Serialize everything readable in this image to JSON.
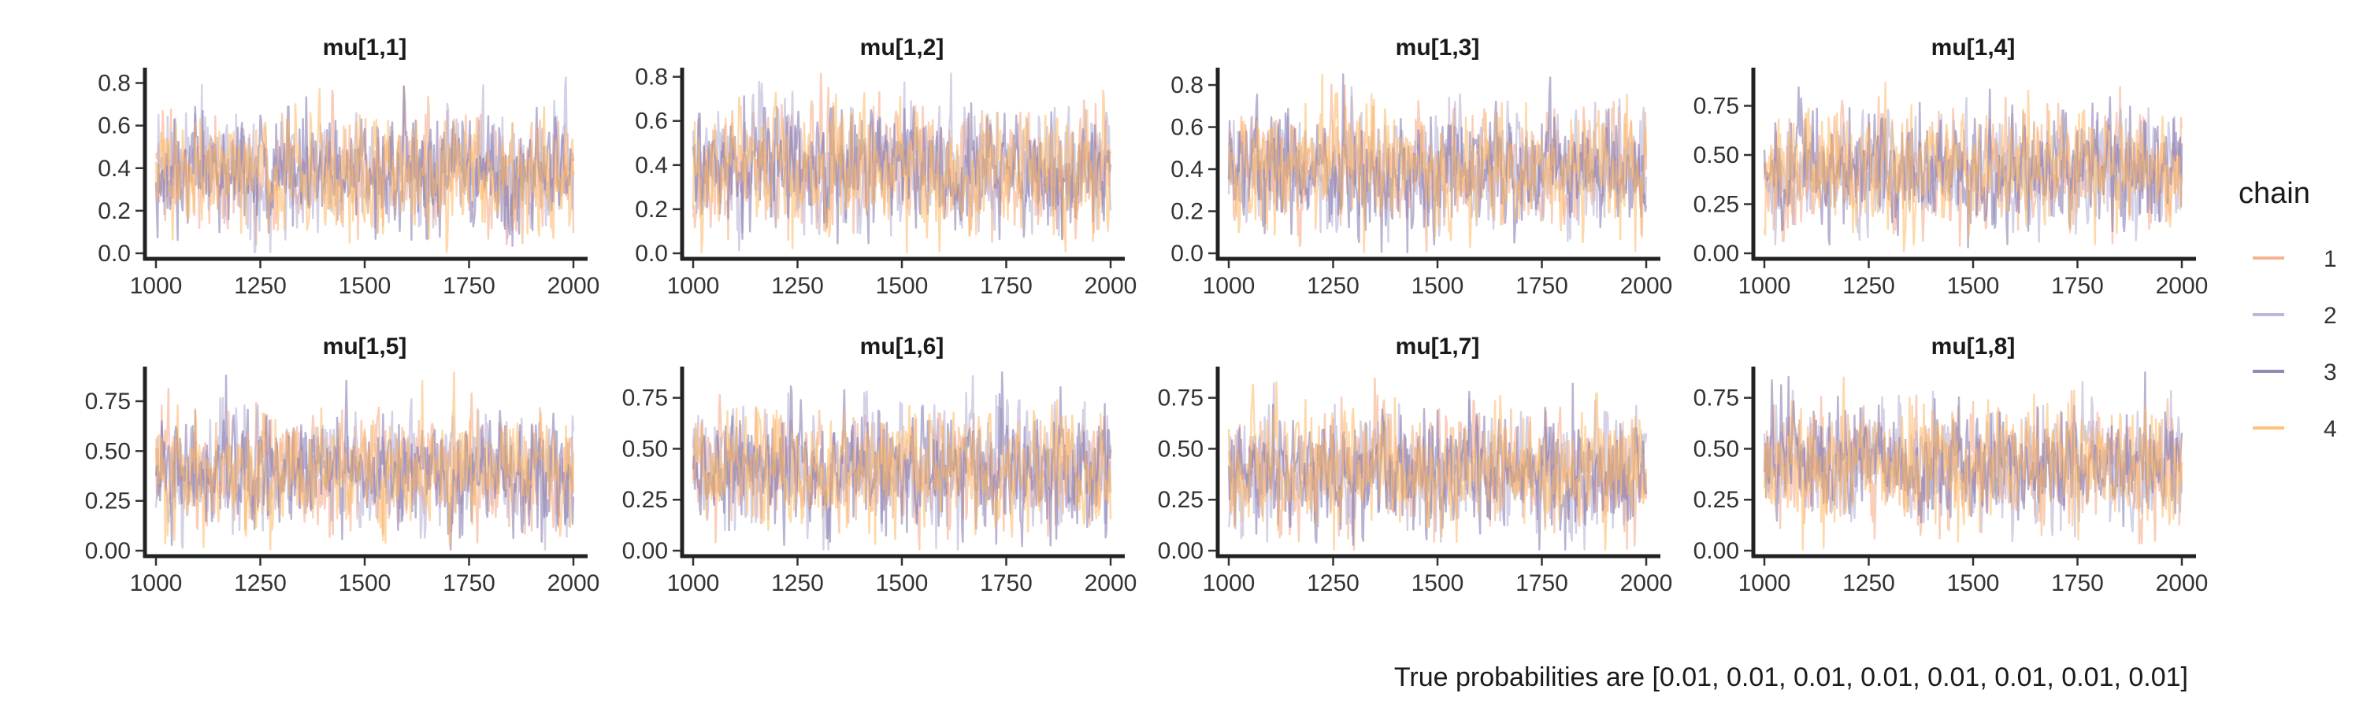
{
  "chart_data": {
    "type": "line",
    "legend": {
      "title": "chain",
      "placement": "right",
      "entries": [
        {
          "label": "1",
          "color": "#f4a582"
        },
        {
          "label": "2",
          "color": "#b2abd2"
        },
        {
          "label": "3",
          "color": "#8073ac"
        },
        {
          "label": "4",
          "color": "#fdb863"
        }
      ]
    },
    "caption": "True probabilities are [0.01, 0.01, 0.01, 0.01, 0.01, 0.01, 0.01, 0.01]",
    "x_range": [
      1000,
      2000
    ],
    "x_ticks": [
      1000,
      1250,
      1500,
      1750,
      2000
    ],
    "grid": false,
    "series_opacity": 0.55,
    "panels": [
      {
        "title": "mu[1,1]",
        "ylim": [
          0.0,
          0.85
        ],
        "y_ticks": [
          0.0,
          0.2,
          0.4,
          0.6,
          0.8
        ],
        "y_tick_labels": [
          "0.0",
          "0.2",
          "0.4",
          "0.6",
          "0.8"
        ],
        "center": 0.38,
        "spread": 0.13
      },
      {
        "title": "mu[1,2]",
        "ylim": [
          0.0,
          0.82
        ],
        "y_ticks": [
          0.0,
          0.2,
          0.4,
          0.6,
          0.8
        ],
        "y_tick_labels": [
          "0.0",
          "0.2",
          "0.4",
          "0.6",
          "0.8"
        ],
        "center": 0.38,
        "spread": 0.13
      },
      {
        "title": "mu[1,3]",
        "ylim": [
          0.0,
          0.86
        ],
        "y_ticks": [
          0.0,
          0.2,
          0.4,
          0.6,
          0.8
        ],
        "y_tick_labels": [
          "0.0",
          "0.2",
          "0.4",
          "0.6",
          "0.8"
        ],
        "center": 0.4,
        "spread": 0.14
      },
      {
        "title": "mu[1,4]",
        "ylim": [
          0.0,
          0.92
        ],
        "y_ticks": [
          0.0,
          0.25,
          0.5,
          0.75
        ],
        "y_tick_labels": [
          "0.00",
          "0.25",
          "0.50",
          "0.75"
        ],
        "center": 0.42,
        "spread": 0.14
      },
      {
        "title": "mu[1,5]",
        "ylim": [
          0.0,
          0.9
        ],
        "y_ticks": [
          0.0,
          0.25,
          0.5,
          0.75
        ],
        "y_tick_labels": [
          "0.00",
          "0.25",
          "0.50",
          "0.75"
        ],
        "center": 0.4,
        "spread": 0.14
      },
      {
        "title": "mu[1,6]",
        "ylim": [
          0.0,
          0.88
        ],
        "y_ticks": [
          0.0,
          0.25,
          0.5,
          0.75
        ],
        "y_tick_labels": [
          "0.00",
          "0.25",
          "0.50",
          "0.75"
        ],
        "center": 0.4,
        "spread": 0.14
      },
      {
        "title": "mu[1,7]",
        "ylim": [
          0.0,
          0.88
        ],
        "y_ticks": [
          0.0,
          0.25,
          0.5,
          0.75
        ],
        "y_tick_labels": [
          "0.00",
          "0.25",
          "0.50",
          "0.75"
        ],
        "center": 0.39,
        "spread": 0.14
      },
      {
        "title": "mu[1,8]",
        "ylim": [
          0.0,
          0.88
        ],
        "y_ticks": [
          0.0,
          0.25,
          0.5,
          0.75
        ],
        "y_tick_labels": [
          "0.00",
          "0.25",
          "0.50",
          "0.75"
        ],
        "center": 0.42,
        "spread": 0.14
      }
    ]
  }
}
